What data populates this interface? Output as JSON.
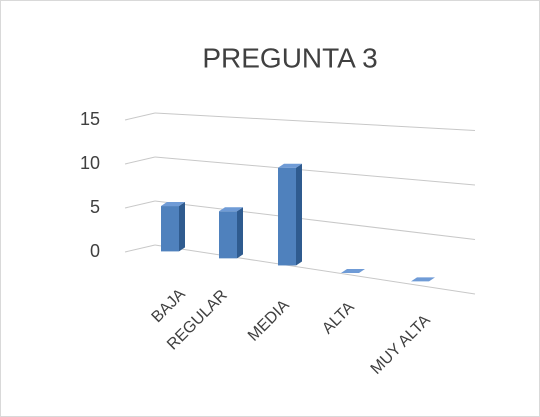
{
  "chart_data": {
    "type": "bar3d",
    "title": "PREGUNTA 3",
    "categories": [
      "BAJA",
      "REGULAR",
      "MEDIA",
      "ALTA",
      "MUY ALTA"
    ],
    "values": [
      5,
      5,
      10,
      0,
      0
    ],
    "color": "#4f81bd",
    "ylim": [
      0,
      15
    ],
    "yticks": [
      0,
      5,
      10,
      15
    ],
    "grid": true
  }
}
